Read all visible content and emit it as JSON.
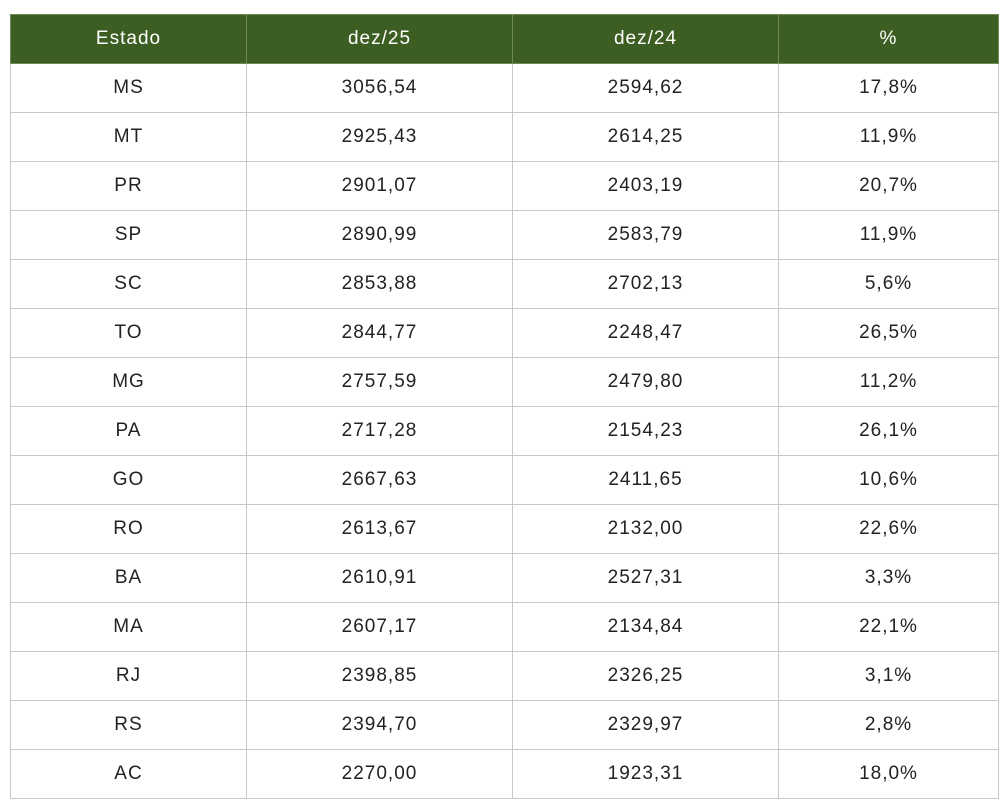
{
  "table": {
    "header": [
      "Estado",
      "dez/25",
      "dez/24",
      "%"
    ],
    "rows": [
      [
        "MS",
        "3056,54",
        "2594,62",
        "17,8%"
      ],
      [
        "MT",
        "2925,43",
        "2614,25",
        "11,9%"
      ],
      [
        "PR",
        "2901,07",
        "2403,19",
        "20,7%"
      ],
      [
        "SP",
        "2890,99",
        "2583,79",
        "11,9%"
      ],
      [
        "SC",
        "2853,88",
        "2702,13",
        "5,6%"
      ],
      [
        "TO",
        "2844,77",
        "2248,47",
        "26,5%"
      ],
      [
        "MG",
        "2757,59",
        "2479,80",
        "11,2%"
      ],
      [
        "PA",
        "2717,28",
        "2154,23",
        "26,1%"
      ],
      [
        "GO",
        "2667,63",
        "2411,65",
        "10,6%"
      ],
      [
        "RO",
        "2613,67",
        "2132,00",
        "22,6%"
      ],
      [
        "BA",
        "2610,91",
        "2527,31",
        "3,3%"
      ],
      [
        "MA",
        "2607,17",
        "2134,84",
        "22,1%"
      ],
      [
        "RJ",
        "2398,85",
        "2326,25",
        "3,1%"
      ],
      [
        "RS",
        "2394,70",
        "2329,97",
        "2,8%"
      ],
      [
        "AC",
        "2270,00",
        "1923,31",
        "18,0%"
      ]
    ]
  }
}
